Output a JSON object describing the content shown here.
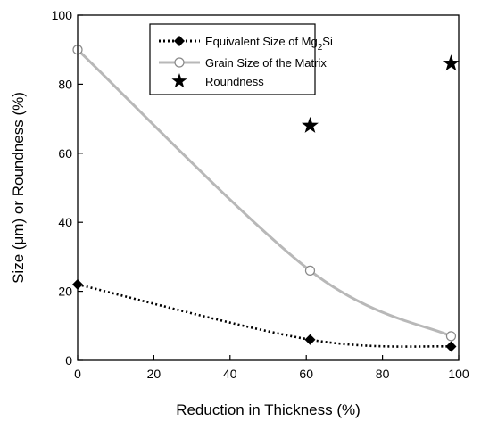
{
  "chart_data": {
    "type": "scatter",
    "xlabel": "Reduction in Thickness (%)",
    "ylabel_parts": [
      "Size (",
      "μ",
      "m) or Roundness (%)"
    ],
    "xlim": [
      0,
      100
    ],
    "ylim": [
      0,
      100
    ],
    "x_ticks": [
      0,
      20,
      40,
      60,
      80,
      100
    ],
    "y_ticks": [
      0,
      20,
      40,
      60,
      80,
      100
    ],
    "grid": false,
    "legend_placement": "top-center",
    "legend": [
      {
        "label_parts": [
          "Equivalent Size of Mg",
          "2",
          "Si"
        ]
      },
      {
        "label": "Grain Size of the Matrix"
      },
      {
        "label": "Roundness"
      }
    ],
    "series": [
      {
        "key": "mg2si",
        "marker": "diamond",
        "line": "dotted",
        "color": "#000000",
        "points": [
          [
            0,
            22
          ],
          [
            61,
            6
          ],
          [
            98,
            4
          ]
        ]
      },
      {
        "key": "matrix",
        "marker": "open-circle",
        "line": "solid",
        "color": "#b8b8b8",
        "points": [
          [
            0,
            90
          ],
          [
            61,
            26
          ],
          [
            98,
            7
          ]
        ]
      },
      {
        "key": "roundness",
        "marker": "star",
        "line": "none",
        "color": "#000000",
        "points": [
          [
            61,
            68
          ],
          [
            98,
            86
          ]
        ]
      }
    ]
  }
}
